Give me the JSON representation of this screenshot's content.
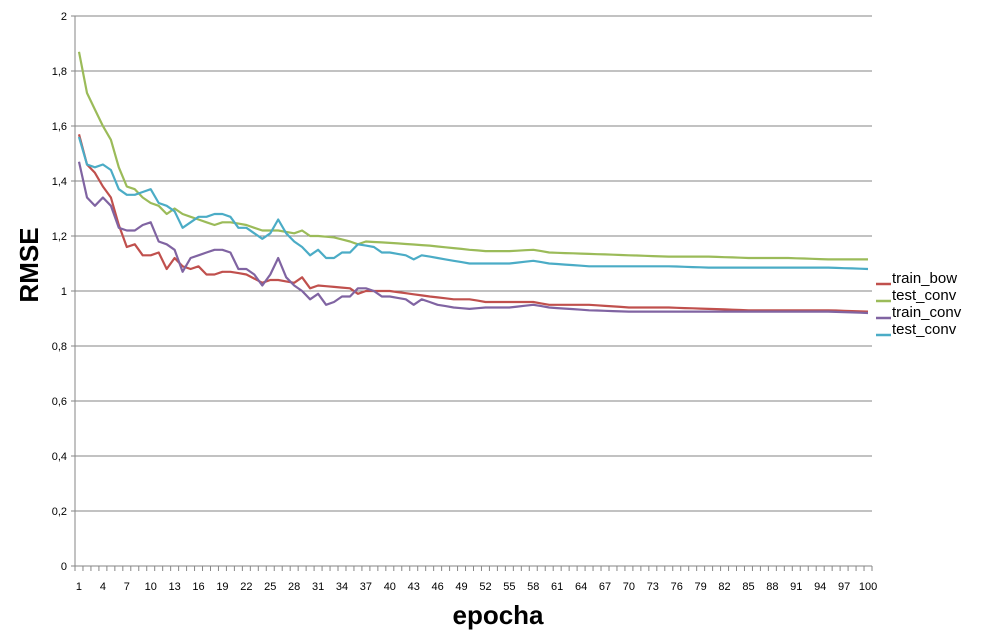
{
  "chart_data": {
    "type": "line",
    "xlabel": "epocha",
    "ylabel": "RMSE",
    "xlim": [
      1,
      100
    ],
    "ylim": [
      0,
      2
    ],
    "grid": true,
    "legend_position": "right",
    "y_ticks": [
      "0",
      "0,2",
      "0,4",
      "0,6",
      "0,8",
      "1",
      "1,2",
      "1,4",
      "1,6",
      "1,8",
      "2"
    ],
    "y_tick_values": [
      0,
      0.2,
      0.4,
      0.6,
      0.8,
      1.0,
      1.2,
      1.4,
      1.6,
      1.8,
      2.0
    ],
    "x_ticks": [
      1,
      4,
      7,
      10,
      13,
      16,
      19,
      22,
      25,
      28,
      31,
      34,
      37,
      40,
      43,
      46,
      49,
      52,
      55,
      58,
      61,
      64,
      67,
      70,
      73,
      76,
      79,
      82,
      85,
      88,
      91,
      94,
      97,
      100
    ],
    "series": [
      {
        "name": "train_bow",
        "color": "#c0504d",
        "keypoints": [
          [
            1,
            1.57
          ],
          [
            2,
            1.46
          ],
          [
            3,
            1.43
          ],
          [
            4,
            1.38
          ],
          [
            5,
            1.34
          ],
          [
            6,
            1.24
          ],
          [
            7,
            1.16
          ],
          [
            8,
            1.17
          ],
          [
            9,
            1.13
          ],
          [
            10,
            1.13
          ],
          [
            11,
            1.14
          ],
          [
            12,
            1.08
          ],
          [
            13,
            1.12
          ],
          [
            14,
            1.09
          ],
          [
            15,
            1.08
          ],
          [
            16,
            1.09
          ],
          [
            17,
            1.06
          ],
          [
            18,
            1.06
          ],
          [
            19,
            1.07
          ],
          [
            20,
            1.07
          ],
          [
            22,
            1.06
          ],
          [
            24,
            1.03
          ],
          [
            25,
            1.04
          ],
          [
            26,
            1.04
          ],
          [
            28,
            1.03
          ],
          [
            29,
            1.05
          ],
          [
            30,
            1.01
          ],
          [
            31,
            1.02
          ],
          [
            35,
            1.01
          ],
          [
            36,
            0.99
          ],
          [
            37,
            1.0
          ],
          [
            40,
            1.0
          ],
          [
            45,
            0.98
          ],
          [
            48,
            0.97
          ],
          [
            50,
            0.97
          ],
          [
            52,
            0.96
          ],
          [
            58,
            0.96
          ],
          [
            60,
            0.95
          ],
          [
            65,
            0.95
          ],
          [
            70,
            0.94
          ],
          [
            75,
            0.94
          ],
          [
            80,
            0.935
          ],
          [
            85,
            0.93
          ],
          [
            90,
            0.93
          ],
          [
            95,
            0.93
          ],
          [
            100,
            0.925
          ]
        ]
      },
      {
        "name": "test_conv",
        "color": "#9bbb59",
        "keypoints": [
          [
            1,
            1.87
          ],
          [
            2,
            1.72
          ],
          [
            3,
            1.66
          ],
          [
            4,
            1.6
          ],
          [
            5,
            1.55
          ],
          [
            6,
            1.45
          ],
          [
            7,
            1.38
          ],
          [
            8,
            1.37
          ],
          [
            9,
            1.34
          ],
          [
            10,
            1.32
          ],
          [
            11,
            1.31
          ],
          [
            12,
            1.28
          ],
          [
            13,
            1.3
          ],
          [
            14,
            1.28
          ],
          [
            15,
            1.27
          ],
          [
            16,
            1.26
          ],
          [
            17,
            1.25
          ],
          [
            18,
            1.24
          ],
          [
            19,
            1.25
          ],
          [
            20,
            1.25
          ],
          [
            22,
            1.24
          ],
          [
            24,
            1.22
          ],
          [
            25,
            1.22
          ],
          [
            26,
            1.22
          ],
          [
            28,
            1.21
          ],
          [
            29,
            1.22
          ],
          [
            30,
            1.2
          ],
          [
            31,
            1.2
          ],
          [
            33,
            1.195
          ],
          [
            35,
            1.18
          ],
          [
            36,
            1.17
          ],
          [
            37,
            1.18
          ],
          [
            40,
            1.175
          ],
          [
            45,
            1.165
          ],
          [
            50,
            1.15
          ],
          [
            52,
            1.145
          ],
          [
            55,
            1.145
          ],
          [
            58,
            1.15
          ],
          [
            60,
            1.14
          ],
          [
            65,
            1.135
          ],
          [
            70,
            1.13
          ],
          [
            75,
            1.125
          ],
          [
            80,
            1.125
          ],
          [
            85,
            1.12
          ],
          [
            90,
            1.12
          ],
          [
            95,
            1.115
          ],
          [
            100,
            1.115
          ]
        ]
      },
      {
        "name": "train_conv",
        "color": "#8064a2",
        "keypoints": [
          [
            1,
            1.47
          ],
          [
            2,
            1.34
          ],
          [
            3,
            1.31
          ],
          [
            4,
            1.34
          ],
          [
            5,
            1.31
          ],
          [
            6,
            1.23
          ],
          [
            7,
            1.22
          ],
          [
            8,
            1.22
          ],
          [
            9,
            1.24
          ],
          [
            10,
            1.25
          ],
          [
            11,
            1.18
          ],
          [
            12,
            1.17
          ],
          [
            13,
            1.15
          ],
          [
            14,
            1.07
          ],
          [
            15,
            1.12
          ],
          [
            16,
            1.13
          ],
          [
            17,
            1.14
          ],
          [
            18,
            1.15
          ],
          [
            19,
            1.15
          ],
          [
            20,
            1.14
          ],
          [
            21,
            1.08
          ],
          [
            22,
            1.08
          ],
          [
            23,
            1.06
          ],
          [
            24,
            1.02
          ],
          [
            25,
            1.06
          ],
          [
            26,
            1.12
          ],
          [
            27,
            1.05
          ],
          [
            28,
            1.02
          ],
          [
            29,
            1.0
          ],
          [
            30,
            0.97
          ],
          [
            31,
            0.99
          ],
          [
            32,
            0.95
          ],
          [
            33,
            0.96
          ],
          [
            34,
            0.98
          ],
          [
            35,
            0.98
          ],
          [
            36,
            1.01
          ],
          [
            37,
            1.01
          ],
          [
            38,
            1.0
          ],
          [
            39,
            0.98
          ],
          [
            40,
            0.98
          ],
          [
            42,
            0.97
          ],
          [
            43,
            0.95
          ],
          [
            44,
            0.97
          ],
          [
            46,
            0.95
          ],
          [
            48,
            0.94
          ],
          [
            50,
            0.935
          ],
          [
            52,
            0.94
          ],
          [
            55,
            0.94
          ],
          [
            58,
            0.95
          ],
          [
            60,
            0.94
          ],
          [
            65,
            0.93
          ],
          [
            70,
            0.925
          ],
          [
            75,
            0.925
          ],
          [
            80,
            0.925
          ],
          [
            85,
            0.925
          ],
          [
            90,
            0.925
          ],
          [
            95,
            0.925
          ],
          [
            100,
            0.92
          ]
        ]
      },
      {
        "name": "test_conv",
        "color": "#4bacc6",
        "keypoints": [
          [
            1,
            1.56
          ],
          [
            2,
            1.46
          ],
          [
            3,
            1.45
          ],
          [
            4,
            1.46
          ],
          [
            5,
            1.44
          ],
          [
            6,
            1.37
          ],
          [
            7,
            1.35
          ],
          [
            8,
            1.35
          ],
          [
            9,
            1.36
          ],
          [
            10,
            1.37
          ],
          [
            11,
            1.32
          ],
          [
            12,
            1.31
          ],
          [
            13,
            1.29
          ],
          [
            14,
            1.23
          ],
          [
            15,
            1.25
          ],
          [
            16,
            1.27
          ],
          [
            17,
            1.27
          ],
          [
            18,
            1.28
          ],
          [
            19,
            1.28
          ],
          [
            20,
            1.27
          ],
          [
            21,
            1.23
          ],
          [
            22,
            1.23
          ],
          [
            23,
            1.21
          ],
          [
            24,
            1.19
          ],
          [
            25,
            1.21
          ],
          [
            26,
            1.26
          ],
          [
            27,
            1.21
          ],
          [
            28,
            1.18
          ],
          [
            29,
            1.16
          ],
          [
            30,
            1.13
          ],
          [
            31,
            1.15
          ],
          [
            32,
            1.12
          ],
          [
            33,
            1.12
          ],
          [
            34,
            1.14
          ],
          [
            35,
            1.14
          ],
          [
            36,
            1.17
          ],
          [
            37,
            1.165
          ],
          [
            38,
            1.16
          ],
          [
            39,
            1.14
          ],
          [
            40,
            1.14
          ],
          [
            42,
            1.13
          ],
          [
            43,
            1.115
          ],
          [
            44,
            1.13
          ],
          [
            46,
            1.12
          ],
          [
            48,
            1.11
          ],
          [
            50,
            1.1
          ],
          [
            52,
            1.1
          ],
          [
            55,
            1.1
          ],
          [
            58,
            1.11
          ],
          [
            60,
            1.1
          ],
          [
            65,
            1.09
          ],
          [
            70,
            1.09
          ],
          [
            75,
            1.09
          ],
          [
            80,
            1.085
          ],
          [
            85,
            1.085
          ],
          [
            90,
            1.085
          ],
          [
            95,
            1.085
          ],
          [
            100,
            1.08
          ]
        ]
      }
    ]
  }
}
